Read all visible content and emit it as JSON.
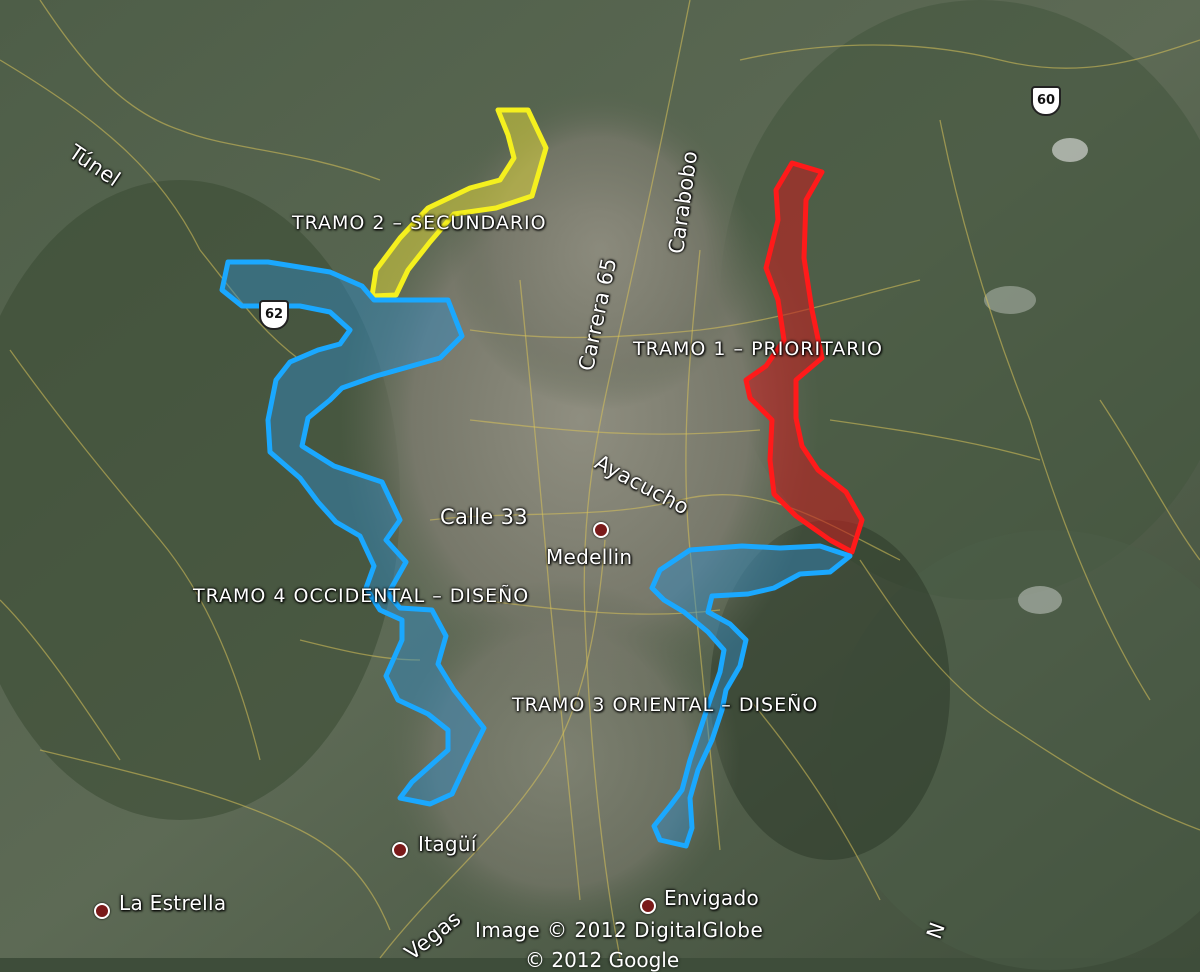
{
  "map": {
    "imagery_credit": "Image © 2012 DigitalGlobe",
    "google_credit": "© 2012 Google",
    "route_colors": {
      "tramo1": "#ff1a1a",
      "tramo2": "#f5f01e",
      "tramo3": "#1aa8ff",
      "tramo4": "#1aa8ff"
    }
  },
  "labels": {
    "tramo1": "TRAMO 1 – PRIORITARIO",
    "tramo2": "TRAMO 2 – SECUNDARIO",
    "tramo3": "TRAMO 3 ORIENTAL – DISEÑO",
    "tramo4": "TRAMO 4 OCCIDENTAL – DISEÑO"
  },
  "roads": {
    "tunel": "Túnel",
    "carrera65": "Carrera 65",
    "carabobo": "Carabobo",
    "ayacucho": "Ayacucho",
    "calle33": "Calle 33",
    "vegas": "Vegas",
    "partial_right": "N"
  },
  "places": {
    "medellin": "Medellin",
    "itagui": "Itagüí",
    "la_estrella": "La Estrella",
    "envigado": "Envigado"
  },
  "shields": {
    "route62": "62",
    "route60": "60"
  }
}
